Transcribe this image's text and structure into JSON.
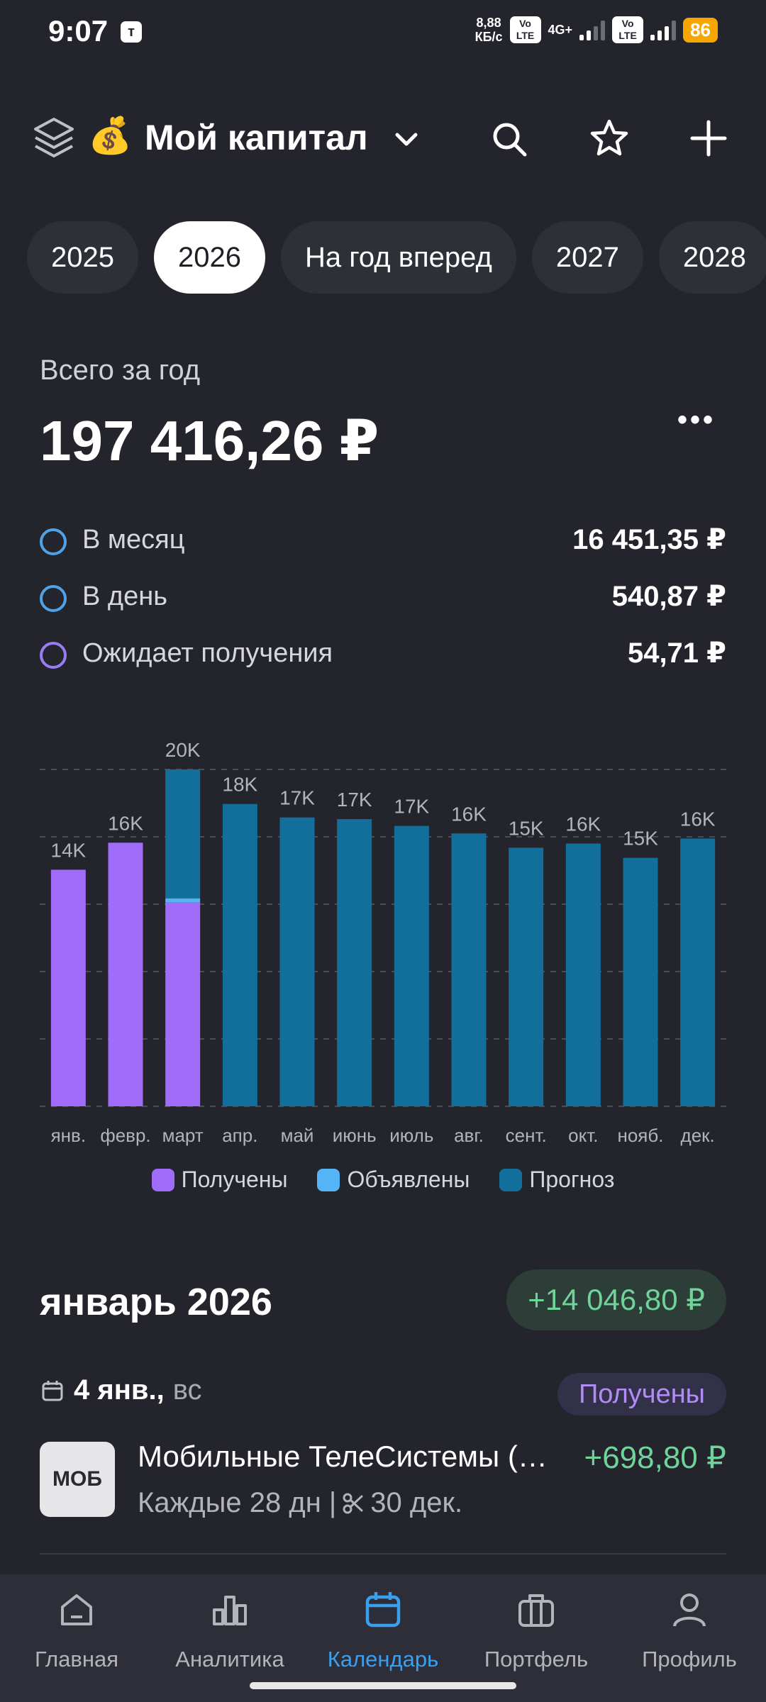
{
  "status_bar": {
    "time": "9:07",
    "app_badge": "т",
    "speed_value": "8,88",
    "speed_unit": "КБ/с",
    "volte_top": "Vo",
    "volte_bottom": "LTE",
    "network": "4G+",
    "battery": "86"
  },
  "header": {
    "emoji": "💰",
    "title": "Мой капитал"
  },
  "years": [
    "2025",
    "2026",
    "На год вперед",
    "2027",
    "2028"
  ],
  "active_year_index": 1,
  "summary": {
    "total_label": "Всего за год",
    "total_value": "197 416,26 ₽",
    "more": "•••",
    "rows": [
      {
        "label": "В месяц",
        "value": "16 451,35 ₽",
        "color": "#4ea3e8"
      },
      {
        "label": "В день",
        "value": "540,87 ₽",
        "color": "#4ea3e8"
      },
      {
        "label": "Ожидает получения",
        "value": "54,71 ₽",
        "color": "#9a7cf2"
      }
    ]
  },
  "chart_data": {
    "type": "bar",
    "stacked": true,
    "categories": [
      "янв.",
      "февр.",
      "март",
      "апр.",
      "май",
      "июнь",
      "июль",
      "авг.",
      "сент.",
      "окт.",
      "нояб.",
      "дек."
    ],
    "data_labels": [
      "14K",
      "16K",
      "20K",
      "18K",
      "17K",
      "17K",
      "17K",
      "16K",
      "15K",
      "16K",
      "15K",
      "16K"
    ],
    "series": [
      {
        "name": "Получены",
        "color": "#a06cf9",
        "values": [
          14047,
          15650,
          12100,
          0,
          0,
          0,
          0,
          0,
          0,
          0,
          0,
          0
        ]
      },
      {
        "name": "Объявлены",
        "color": "#54b4f5",
        "values": [
          0,
          0,
          250,
          0,
          0,
          0,
          0,
          0,
          0,
          0,
          0,
          0
        ]
      },
      {
        "name": "Прогноз",
        "color": "#126f9c",
        "values": [
          0,
          0,
          7650,
          17950,
          17150,
          17050,
          16650,
          16200,
          15350,
          15600,
          14750,
          15900
        ]
      }
    ],
    "ylim": [
      0,
      20000
    ],
    "grid": true,
    "legend": "bottom-center"
  },
  "month": {
    "title": "январь 2026",
    "sum": "+14 046,80 ₽",
    "date_main": "4 янв.,",
    "date_dow": "вс",
    "status": "Получены",
    "item": {
      "logo": "МОБ",
      "name": "Мобильные ТелеСистемы (МТС)",
      "amount": "+698,80 ₽",
      "sub_left": "Каждые 28 дн |",
      "sub_right": "30 дек."
    }
  },
  "nav": [
    {
      "label": "Главная",
      "icon": "home-icon"
    },
    {
      "label": "Аналитика",
      "icon": "analytics-icon"
    },
    {
      "label": "Календарь",
      "icon": "calendar-icon"
    },
    {
      "label": "Портфель",
      "icon": "briefcase-icon"
    },
    {
      "label": "Профиль",
      "icon": "profile-icon"
    }
  ],
  "active_nav_index": 2
}
